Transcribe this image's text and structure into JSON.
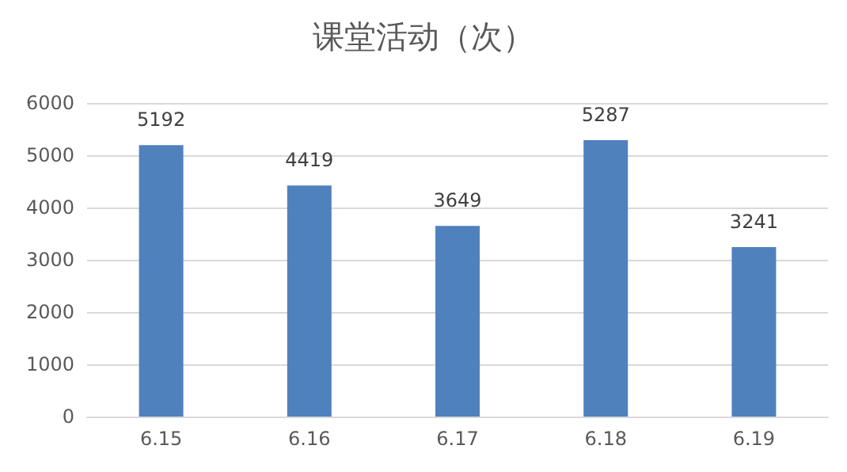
{
  "chart_data": {
    "type": "bar",
    "title": "课堂活动（次）",
    "categories": [
      "6.15",
      "6.16",
      "6.17",
      "6.18",
      "6.19"
    ],
    "values": [
      5192,
      4419,
      3649,
      5287,
      3241
    ],
    "color": "#4f81bd",
    "ylim": [
      0,
      6000
    ],
    "yticks": [
      0,
      1000,
      2000,
      3000,
      4000,
      5000,
      6000
    ],
    "grid": "y",
    "data_labels": true
  }
}
